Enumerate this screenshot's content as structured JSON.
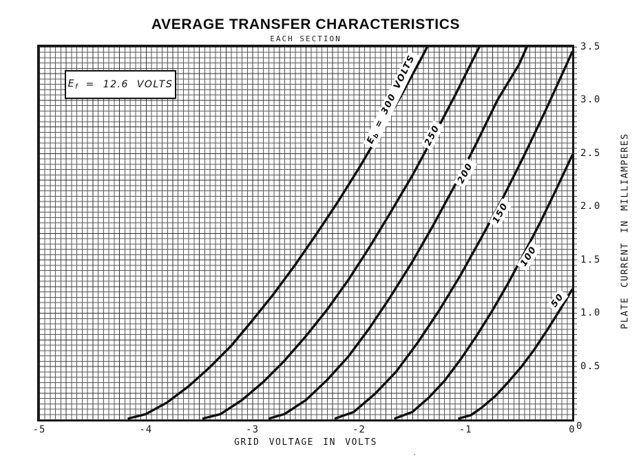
{
  "header": {
    "title": "AVERAGE TRANSFER CHARACTERISTICS",
    "subtitle": "EACH SECTION"
  },
  "chart_data": {
    "type": "line",
    "title": "AVERAGE TRANSFER CHARACTERISTICS",
    "subtitle": "EACH SECTION",
    "xlabel": "GRID VOLTAGE IN VOLTS",
    "ylabel": "PLATE CURRENT IN MILLIAMPERES",
    "xlim": [
      -5,
      0
    ],
    "ylim": [
      0,
      3.5
    ],
    "grid": {
      "on": true,
      "minor_step_volts": 0.05,
      "minor_step_ma": 0.05
    },
    "x_ticks": {
      "values": [
        -5,
        -4,
        -3,
        -2,
        -1,
        0
      ],
      "labels": [
        "-5",
        "-4",
        "-3",
        "-2",
        "-1",
        "0"
      ]
    },
    "y_ticks": {
      "values": [
        3.5,
        3.0,
        2.5,
        2.0,
        1.5,
        1.0,
        0.5,
        0
      ],
      "labels": [
        "3.5",
        "3.0",
        "2.5",
        "2.0",
        "1.5",
        "1.0",
        "0.5",
        "0"
      ]
    },
    "condition_box": {
      "symbol_main": "E",
      "symbol_sub": "f",
      "text": "= 12.6 VOLTS"
    },
    "curve_color": "#101010",
    "series": [
      {
        "name": "Eb = 300 VOLTS",
        "plate_voltage": 300,
        "label_main": "E",
        "label_sub": "b",
        "label_text": "= 300 VOLTS",
        "label_at": {
          "v": -1.69,
          "i": 3.0
        },
        "label_angle": -64,
        "points": [
          [
            -4.16,
            0.01
          ],
          [
            -4.0,
            0.05
          ],
          [
            -3.8,
            0.16
          ],
          [
            -3.6,
            0.31
          ],
          [
            -3.4,
            0.49
          ],
          [
            -3.2,
            0.69
          ],
          [
            -3.0,
            0.93
          ],
          [
            -2.8,
            1.18
          ],
          [
            -2.6,
            1.45
          ],
          [
            -2.4,
            1.74
          ],
          [
            -2.2,
            2.04
          ],
          [
            -2.0,
            2.36
          ],
          [
            -1.8,
            2.7
          ],
          [
            -1.6,
            3.05
          ],
          [
            -1.4,
            3.42
          ],
          [
            -1.32,
            3.58
          ]
        ]
      },
      {
        "name": "Eb = 250 VOLTS",
        "plate_voltage": 250,
        "label_text": "250",
        "label_at": {
          "v": -1.31,
          "i": 2.67
        },
        "label_angle": -63,
        "points": [
          [
            -3.46,
            0.01
          ],
          [
            -3.3,
            0.05
          ],
          [
            -3.1,
            0.18
          ],
          [
            -2.9,
            0.35
          ],
          [
            -2.7,
            0.55
          ],
          [
            -2.5,
            0.78
          ],
          [
            -2.3,
            1.03
          ],
          [
            -2.1,
            1.31
          ],
          [
            -1.9,
            1.62
          ],
          [
            -1.7,
            1.95
          ],
          [
            -1.5,
            2.29
          ],
          [
            -1.3,
            2.66
          ],
          [
            -1.1,
            3.04
          ],
          [
            -0.9,
            3.44
          ],
          [
            -0.82,
            3.6
          ]
        ]
      },
      {
        "name": "Eb = 200 VOLTS",
        "plate_voltage": 200,
        "label_text": "200",
        "label_at": {
          "v": -1.0,
          "i": 2.31
        },
        "label_angle": -62,
        "points": [
          [
            -2.84,
            0.01
          ],
          [
            -2.7,
            0.05
          ],
          [
            -2.5,
            0.18
          ],
          [
            -2.3,
            0.37
          ],
          [
            -2.1,
            0.59
          ],
          [
            -1.9,
            0.86
          ],
          [
            -1.7,
            1.16
          ],
          [
            -1.5,
            1.48
          ],
          [
            -1.3,
            1.83
          ],
          [
            -1.1,
            2.2
          ],
          [
            -0.9,
            2.59
          ],
          [
            -0.7,
            3.0
          ],
          [
            -0.5,
            3.33
          ],
          [
            -0.38,
            3.6
          ]
        ]
      },
      {
        "name": "Eb = 150 VOLTS",
        "plate_voltage": 150,
        "label_text": "150",
        "label_at": {
          "v": -0.67,
          "i": 1.94
        },
        "label_angle": -61,
        "points": [
          [
            -2.22,
            0.01
          ],
          [
            -2.05,
            0.07
          ],
          [
            -1.85,
            0.24
          ],
          [
            -1.65,
            0.45
          ],
          [
            -1.45,
            0.72
          ],
          [
            -1.25,
            1.02
          ],
          [
            -1.05,
            1.35
          ],
          [
            -0.85,
            1.71
          ],
          [
            -0.65,
            2.08
          ],
          [
            -0.45,
            2.48
          ],
          [
            -0.25,
            2.9
          ],
          [
            -0.05,
            3.34
          ],
          [
            0,
            3.45
          ]
        ]
      },
      {
        "name": "Eb = 100 VOLTS",
        "plate_voltage": 100,
        "label_text": "100",
        "label_at": {
          "v": -0.41,
          "i": 1.53
        },
        "label_angle": -58,
        "points": [
          [
            -1.66,
            0.01
          ],
          [
            -1.5,
            0.07
          ],
          [
            -1.35,
            0.2
          ],
          [
            -1.2,
            0.36
          ],
          [
            -1.05,
            0.56
          ],
          [
            -0.9,
            0.78
          ],
          [
            -0.75,
            1.02
          ],
          [
            -0.6,
            1.28
          ],
          [
            -0.45,
            1.56
          ],
          [
            -0.3,
            1.85
          ],
          [
            -0.15,
            2.16
          ],
          [
            0,
            2.48
          ]
        ]
      },
      {
        "name": "Eb = 50 VOLTS",
        "plate_voltage": 50,
        "label_text": "50",
        "label_at": {
          "v": -0.135,
          "i": 1.12
        },
        "label_angle": -53,
        "points": [
          [
            -1.06,
            0.01
          ],
          [
            -0.95,
            0.04
          ],
          [
            -0.85,
            0.11
          ],
          [
            -0.72,
            0.22
          ],
          [
            -0.6,
            0.35
          ],
          [
            -0.48,
            0.49
          ],
          [
            -0.36,
            0.65
          ],
          [
            -0.24,
            0.83
          ],
          [
            -0.12,
            1.02
          ],
          [
            0,
            1.22
          ]
        ]
      }
    ]
  }
}
